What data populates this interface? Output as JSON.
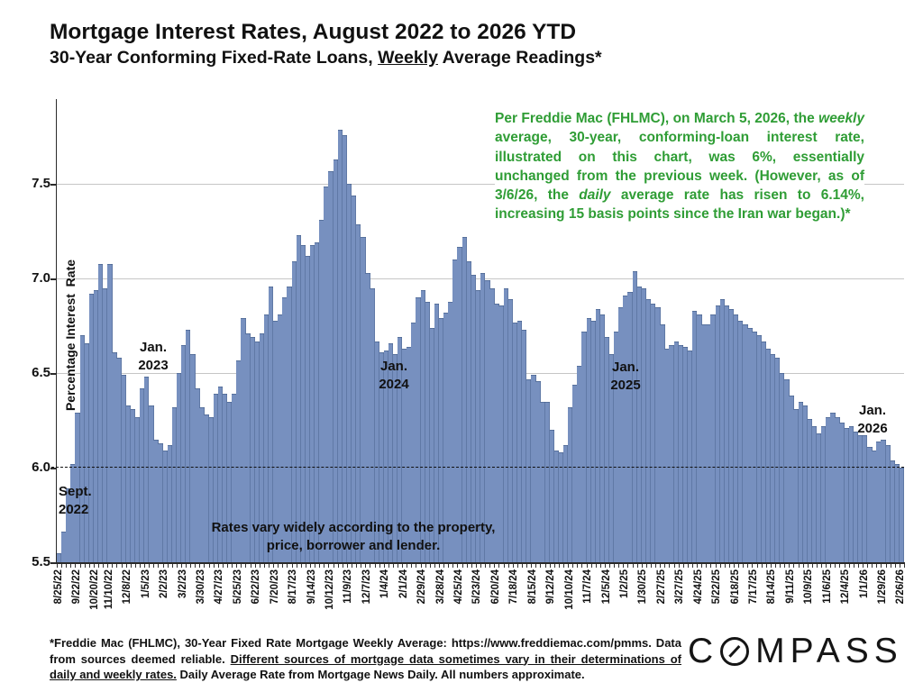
{
  "header": {
    "title": "Mortgage Interest Rates, August 2022 to 2026 YTD",
    "subtitle_prefix": "30-Year Conforming Fixed-Rate Loans, ",
    "subtitle_underlined": "Weekly",
    "subtitle_suffix": " Average Readings*"
  },
  "annotation_green": {
    "color": "#2f9d35",
    "part1": "Per Freddie Mac (FHLMC), on March 5, 2026, the ",
    "italic1": "weekly",
    "part2": " average, 30-year, conforming-loan interest rate, illustrated on this chart, was 6%, essentially unchanged from the previous week. (However, as of 3/6/26, the ",
    "italic2": "daily",
    "part3": " average rate has risen to 6.14%, increasing 15 basis points since the Iran war began.)*"
  },
  "chart_data": {
    "type": "bar",
    "title": "Mortgage Interest Rates, August 2022 to 2026 YTD",
    "subtitle": "30-Year Conforming Fixed-Rate Loans, Weekly Average Readings*",
    "ylabel": "Percentage Interest  Rate",
    "xlabel": "",
    "ylim": [
      5.5,
      7.95
    ],
    "yticks": [
      5.5,
      6.0,
      6.5,
      7.0,
      7.5
    ],
    "gridlines": [
      6.5,
      7.0,
      7.5
    ],
    "dashed_line_y": 6.0,
    "grid": "horizontal",
    "legend": "none",
    "bar_color": "#7790bf",
    "x_tick_labels": [
      "8/25/22",
      "9/22/22",
      "10/20/22",
      "11/10/22",
      "12/8/22",
      "1/5/23",
      "2/2/23",
      "3/2/23",
      "3/30/23",
      "4/27/23",
      "5/25/23",
      "6/22/23",
      "7/20/23",
      "8/17/23",
      "9/14/23",
      "10/12/23",
      "11/9/23",
      "12/7/23",
      "1/4/24",
      "2/1/24",
      "2/29/24",
      "3/28/24",
      "4/25/24",
      "5/23/24",
      "6/20/24",
      "7/18/24",
      "8/15/24",
      "9/12/24",
      "10/10/24",
      "11/7/24",
      "12/5/24",
      "1/2/25",
      "1/30/25",
      "2/27/25",
      "3/27/25",
      "4/24/25",
      "5/22/25",
      "6/18/25",
      "7/17/25",
      "8/14/25",
      "9/11/25",
      "10/9/25",
      "11/6/25",
      "12/4/25",
      "1/1/26",
      "1/29/26",
      "2/26/26"
    ],
    "x_tick_indices": [
      0,
      4,
      8,
      11,
      15,
      19,
      23,
      27,
      31,
      35,
      39,
      43,
      47,
      51,
      55,
      59,
      63,
      67,
      71,
      75,
      79,
      83,
      87,
      91,
      95,
      99,
      103,
      107,
      111,
      115,
      119,
      123,
      127,
      131,
      135,
      139,
      143,
      147,
      151,
      155,
      159,
      163,
      167,
      171,
      175,
      179,
      183
    ],
    "series": [
      {
        "name": "30-Year Conforming Fixed-Rate Weekly Average (%)",
        "values": [
          5.55,
          5.66,
          5.89,
          6.02,
          6.29,
          6.7,
          6.66,
          6.92,
          6.94,
          7.08,
          6.95,
          7.08,
          6.61,
          6.58,
          6.49,
          6.33,
          6.31,
          6.27,
          6.42,
          6.48,
          6.33,
          6.15,
          6.13,
          6.09,
          6.12,
          6.32,
          6.5,
          6.65,
          6.73,
          6.6,
          6.42,
          6.32,
          6.28,
          6.27,
          6.39,
          6.43,
          6.39,
          6.35,
          6.39,
          6.57,
          6.79,
          6.71,
          6.69,
          6.67,
          6.71,
          6.81,
          6.96,
          6.78,
          6.81,
          6.9,
          6.96,
          7.09,
          7.23,
          7.18,
          7.12,
          7.18,
          7.19,
          7.31,
          7.49,
          7.57,
          7.63,
          7.79,
          7.76,
          7.5,
          7.44,
          7.29,
          7.22,
          7.03,
          6.95,
          6.67,
          6.61,
          6.62,
          6.66,
          6.6,
          6.69,
          6.63,
          6.64,
          6.77,
          6.9,
          6.94,
          6.88,
          6.74,
          6.87,
          6.79,
          6.82,
          6.88,
          7.1,
          7.17,
          7.22,
          7.09,
          7.02,
          6.94,
          7.03,
          6.99,
          6.95,
          6.87,
          6.86,
          6.95,
          6.89,
          6.77,
          6.78,
          6.73,
          6.47,
          6.49,
          6.46,
          6.35,
          6.35,
          6.2,
          6.09,
          6.08,
          6.12,
          6.32,
          6.44,
          6.54,
          6.72,
          6.79,
          6.78,
          6.84,
          6.81,
          6.69,
          6.6,
          6.72,
          6.85,
          6.91,
          6.93,
          7.04,
          6.96,
          6.95,
          6.89,
          6.87,
          6.85,
          6.76,
          6.63,
          6.65,
          6.67,
          6.65,
          6.64,
          6.62,
          6.83,
          6.81,
          6.76,
          6.76,
          6.81,
          6.86,
          6.89,
          6.86,
          6.84,
          6.81,
          6.78,
          6.76,
          6.74,
          6.72,
          6.7,
          6.67,
          6.63,
          6.6,
          6.58,
          6.5,
          6.47,
          6.38,
          6.31,
          6.35,
          6.33,
          6.26,
          6.22,
          6.18,
          6.22,
          6.27,
          6.29,
          6.27,
          6.24,
          6.21,
          6.22,
          6.19,
          6.17,
          6.17,
          6.11,
          6.09,
          6.14,
          6.15,
          6.12,
          6.04,
          6.02,
          6.0
        ]
      }
    ],
    "annotations": [
      {
        "id": "sept-2022",
        "lines": [
          "Sept.",
          "2022"
        ],
        "x": 65,
        "y": 536,
        "align": "left"
      },
      {
        "id": "jan-2023",
        "lines": [
          "Jan.",
          "2023"
        ],
        "x": 170,
        "y": 376,
        "align": "center"
      },
      {
        "id": "jan-2024",
        "lines": [
          "Jan.",
          "2024"
        ],
        "x": 437,
        "y": 397,
        "align": "center"
      },
      {
        "id": "jan-2025",
        "lines": [
          "Jan.",
          "2025"
        ],
        "x": 694,
        "y": 398,
        "align": "center"
      },
      {
        "id": "jan-2026",
        "lines": [
          "Jan.",
          "2026"
        ],
        "x": 968,
        "y": 446,
        "align": "center"
      },
      {
        "id": "rates-vary-note",
        "lines": [
          "Rates vary widely according to the property,",
          "price, borrower and lender."
        ],
        "x": 392,
        "y": 576,
        "align": "center"
      }
    ]
  },
  "footer": {
    "part1": "*Freddie Mac (FHLMC), 30-Year Fixed Rate Mortgage Weekly Average:  https://www.freddiemac.com/pmms. Data from sources deemed reliable. ",
    "underlined": "Different sources of mortgage data sometimes vary in their determinations of daily and weekly rates.",
    "part2": " Daily Average Rate from Mortgage News Daily. All numbers approximate."
  },
  "logo": {
    "name": "COMPASS",
    "part1": "C",
    "part2": "MPASS"
  }
}
